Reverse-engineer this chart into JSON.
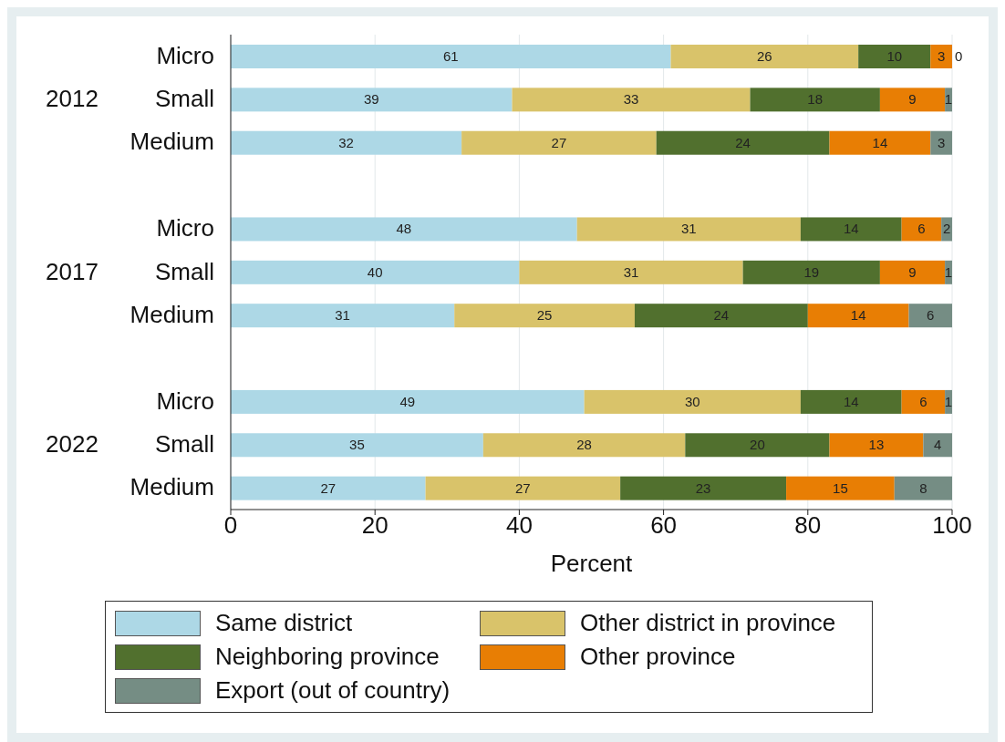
{
  "chart_data": {
    "type": "bar",
    "orientation": "horizontal",
    "stacked": true,
    "xlabel": "Percent",
    "categories": [
      "Micro",
      "Small",
      "Medium",
      "Micro",
      "Small",
      "Medium",
      "Micro",
      "Small",
      "Medium"
    ],
    "annotations": [
      "2012",
      "2017",
      "2022"
    ],
    "series": [
      {
        "name": "Same district",
        "color": "#add8e6",
        "values": [
          61,
          39,
          32,
          48,
          40,
          31,
          49,
          35,
          27
        ],
        "value_labels": [
          "61",
          "39",
          "32",
          "48",
          "40",
          "31",
          "49",
          "35",
          "27"
        ]
      },
      {
        "name": "Other district in province",
        "color": "#d9c36a",
        "values": [
          26,
          33,
          27,
          31,
          31,
          25,
          30,
          28,
          27
        ],
        "value_labels": [
          "26",
          "33",
          "27",
          "31",
          "31",
          "25",
          "30",
          "28",
          "27"
        ]
      },
      {
        "name": "Neighboring province",
        "color": "#51702e",
        "values": [
          10,
          18,
          24,
          14,
          19,
          24,
          14,
          20,
          23
        ],
        "value_labels": [
          "10",
          "18",
          "24",
          "14",
          "19",
          "24",
          "14",
          "20",
          "23"
        ]
      },
      {
        "name": "Other province",
        "color": "#e87e04",
        "values": [
          3,
          9,
          14,
          5.5,
          9,
          14,
          6,
          13,
          15
        ],
        "value_labels": [
          "3",
          "9",
          "14",
          "6",
          "9",
          "14",
          "6",
          "13",
          "15"
        ]
      },
      {
        "name": "Export (out of country)",
        "color": "#758d84",
        "values": [
          0,
          1,
          3,
          1.5,
          1,
          6,
          1,
          4,
          8
        ],
        "value_labels": [
          "0",
          "1",
          "3",
          "2",
          "1",
          "6",
          "1",
          "4",
          "8"
        ]
      }
    ],
    "xlim": [
      0,
      100
    ],
    "xticks": [
      0,
      20,
      40,
      60,
      80,
      100
    ],
    "grid": "x",
    "legend": "bottom"
  }
}
